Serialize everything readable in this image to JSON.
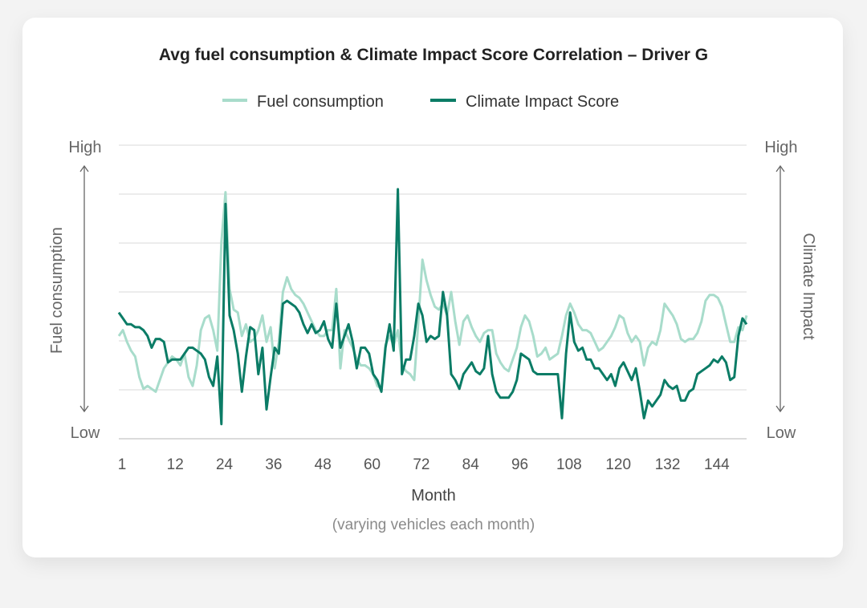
{
  "chart_data": {
    "type": "line",
    "title": "Avg fuel consumption & Climate Impact Score Correlation – Driver G",
    "xlabel": "Month",
    "xlabel_note": "(varying vehicles each month)",
    "ylabel_left": "Fuel consumption",
    "ylabel_right": "Climate Impact",
    "y_tick_labels": {
      "high": "High",
      "low": "Low"
    },
    "x_ticks": [
      1,
      12,
      24,
      36,
      48,
      60,
      72,
      84,
      96,
      108,
      120,
      132,
      144
    ],
    "xlim": [
      1,
      154
    ],
    "ylim": [
      0,
      100
    ],
    "grid": true,
    "legend_position": "top",
    "series": [
      {
        "name": "Fuel consumption",
        "color": "#a8dccb",
        "values": [
          35,
          37,
          33,
          30,
          28,
          21,
          17,
          18,
          17,
          16,
          20,
          24,
          26,
          28,
          27,
          25,
          29,
          21,
          18,
          25,
          37,
          41,
          42,
          37,
          30,
          67,
          84,
          51,
          44,
          43,
          35,
          39,
          33,
          34,
          37,
          42,
          33,
          38,
          24,
          33,
          50,
          55,
          51,
          49,
          48,
          46,
          43,
          40,
          37,
          35,
          35,
          37,
          37,
          51,
          24,
          37,
          34,
          31,
          27,
          25,
          25,
          24,
          22,
          18,
          17,
          32,
          35,
          32,
          37,
          25,
          23,
          22,
          20,
          40,
          61,
          54,
          49,
          45,
          44,
          46,
          42,
          50,
          40,
          32,
          40,
          42,
          38,
          35,
          33,
          36,
          37,
          37,
          29,
          26,
          24,
          23,
          27,
          31,
          38,
          42,
          40,
          35,
          28,
          29,
          31,
          27,
          28,
          29,
          35,
          42,
          46,
          43,
          39,
          37,
          37,
          36,
          33,
          30,
          31,
          33,
          35,
          38,
          42,
          41,
          36,
          33,
          35,
          33,
          25,
          31,
          33,
          32,
          37,
          46,
          44,
          42,
          39,
          34,
          33,
          34,
          34,
          36,
          40,
          47,
          49,
          49,
          48,
          45,
          39,
          33,
          33,
          38,
          37,
          42
        ]
      },
      {
        "name": "Climate Impact Score",
        "color": "#0b7c66",
        "values": [
          43,
          41,
          39,
          39,
          38,
          38,
          37,
          35,
          31,
          34,
          34,
          33,
          26,
          27,
          27,
          27,
          29,
          31,
          31,
          30,
          29,
          27,
          21,
          18,
          28,
          5,
          80,
          42,
          37,
          29,
          16,
          28,
          38,
          37,
          22,
          31,
          10,
          21,
          31,
          29,
          46,
          47,
          46,
          45,
          43,
          39,
          36,
          39,
          36,
          37,
          40,
          34,
          31,
          46,
          31,
          35,
          39,
          33,
          24,
          31,
          31,
          29,
          22,
          20,
          16,
          31,
          39,
          30,
          85,
          22,
          27,
          27,
          35,
          46,
          42,
          33,
          35,
          34,
          35,
          50,
          42,
          22,
          20,
          17,
          22,
          24,
          26,
          23,
          22,
          24,
          35,
          22,
          16,
          14,
          14,
          14,
          16,
          20,
          29,
          28,
          27,
          23,
          22,
          22,
          22,
          22,
          22,
          22,
          7,
          29,
          43,
          33,
          30,
          31,
          27,
          27,
          24,
          24,
          22,
          20,
          22,
          18,
          24,
          26,
          23,
          20,
          24,
          16,
          7,
          13,
          11,
          13,
          15,
          20,
          18,
          17,
          18,
          13,
          13,
          16,
          17,
          22,
          23,
          24,
          25,
          27,
          26,
          28,
          26,
          20,
          21,
          35,
          41,
          39
        ]
      }
    ]
  }
}
